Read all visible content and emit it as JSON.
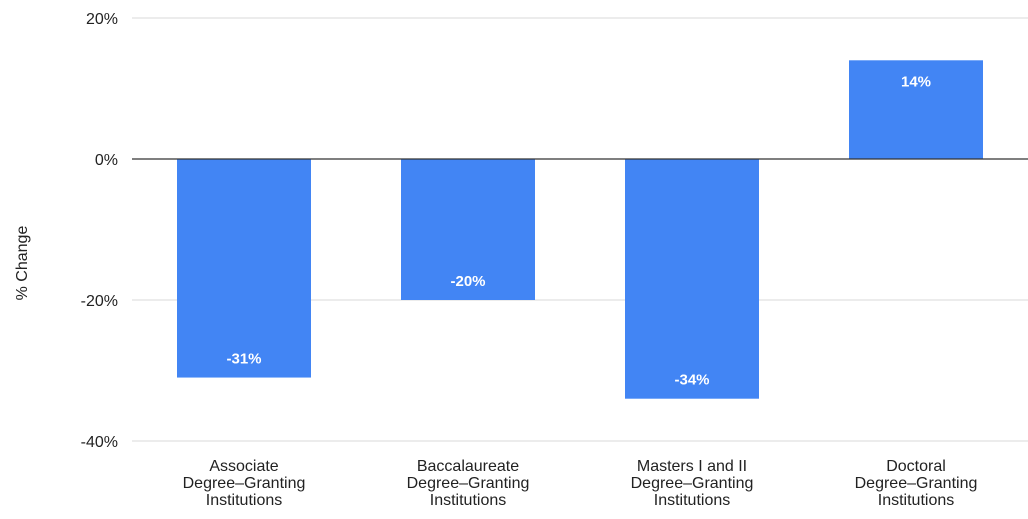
{
  "chart_data": {
    "type": "bar",
    "title": "",
    "xlabel": "",
    "ylabel": "% Change",
    "ylim": [
      -40,
      20
    ],
    "yticks": [
      20,
      0,
      -20,
      -40
    ],
    "ytick_labels": [
      "20%",
      "0%",
      "-20%",
      "-40%"
    ],
    "grid": true,
    "legend": "none",
    "bar_color": "#4285F4",
    "categories": [
      [
        "Associate",
        "Degree–Granting",
        "Institutions"
      ],
      [
        "Baccalaureate",
        "Degree–Granting",
        "Institutions"
      ],
      [
        "Masters I and II",
        "Degree–Granting",
        "Institutions"
      ],
      [
        "Doctoral",
        "Degree–Granting",
        "Institutions"
      ]
    ],
    "values": [
      -31,
      -20,
      -34,
      14
    ],
    "data_labels": [
      "-31%",
      "-20%",
      "-34%",
      "14%"
    ]
  }
}
